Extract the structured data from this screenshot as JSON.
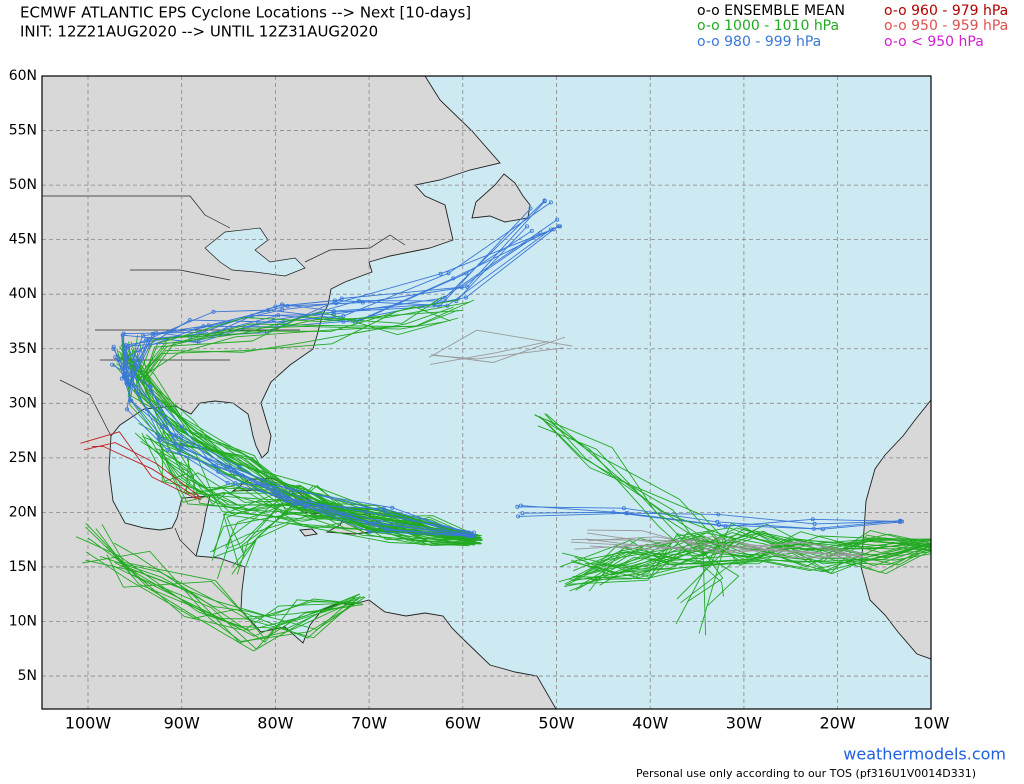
{
  "header": {
    "title": "ECMWF ATLANTIC EPS Cyclone Locations --> Next [10-days]",
    "subtitle": "INIT: 12Z21AUG2020 --> UNTIL 12Z31AUG2020"
  },
  "legend": [
    "o-o ENSEMBLE MEAN",
    "o-o 960 - 979 hPa",
    "o-o 1000 - 1010 hPa",
    "o-o 950 - 959 hPa",
    "o-o 980 - 999 hPa",
    "o-o < 950 hPa"
  ],
  "map": {
    "lat_labels": [
      "60N",
      "55N",
      "50N",
      "45N",
      "40N",
      "35N",
      "30N",
      "25N",
      "20N",
      "15N",
      "10N",
      "5N"
    ],
    "lon_labels": [
      "100W",
      "90W",
      "80W",
      "70W",
      "60W",
      "50W",
      "40W",
      "30W",
      "20W",
      "10W"
    ]
  },
  "footer": {
    "site": "weathermodels.com",
    "notice": "Personal use only according to our TOS (pf316U1V0014D331)"
  }
}
